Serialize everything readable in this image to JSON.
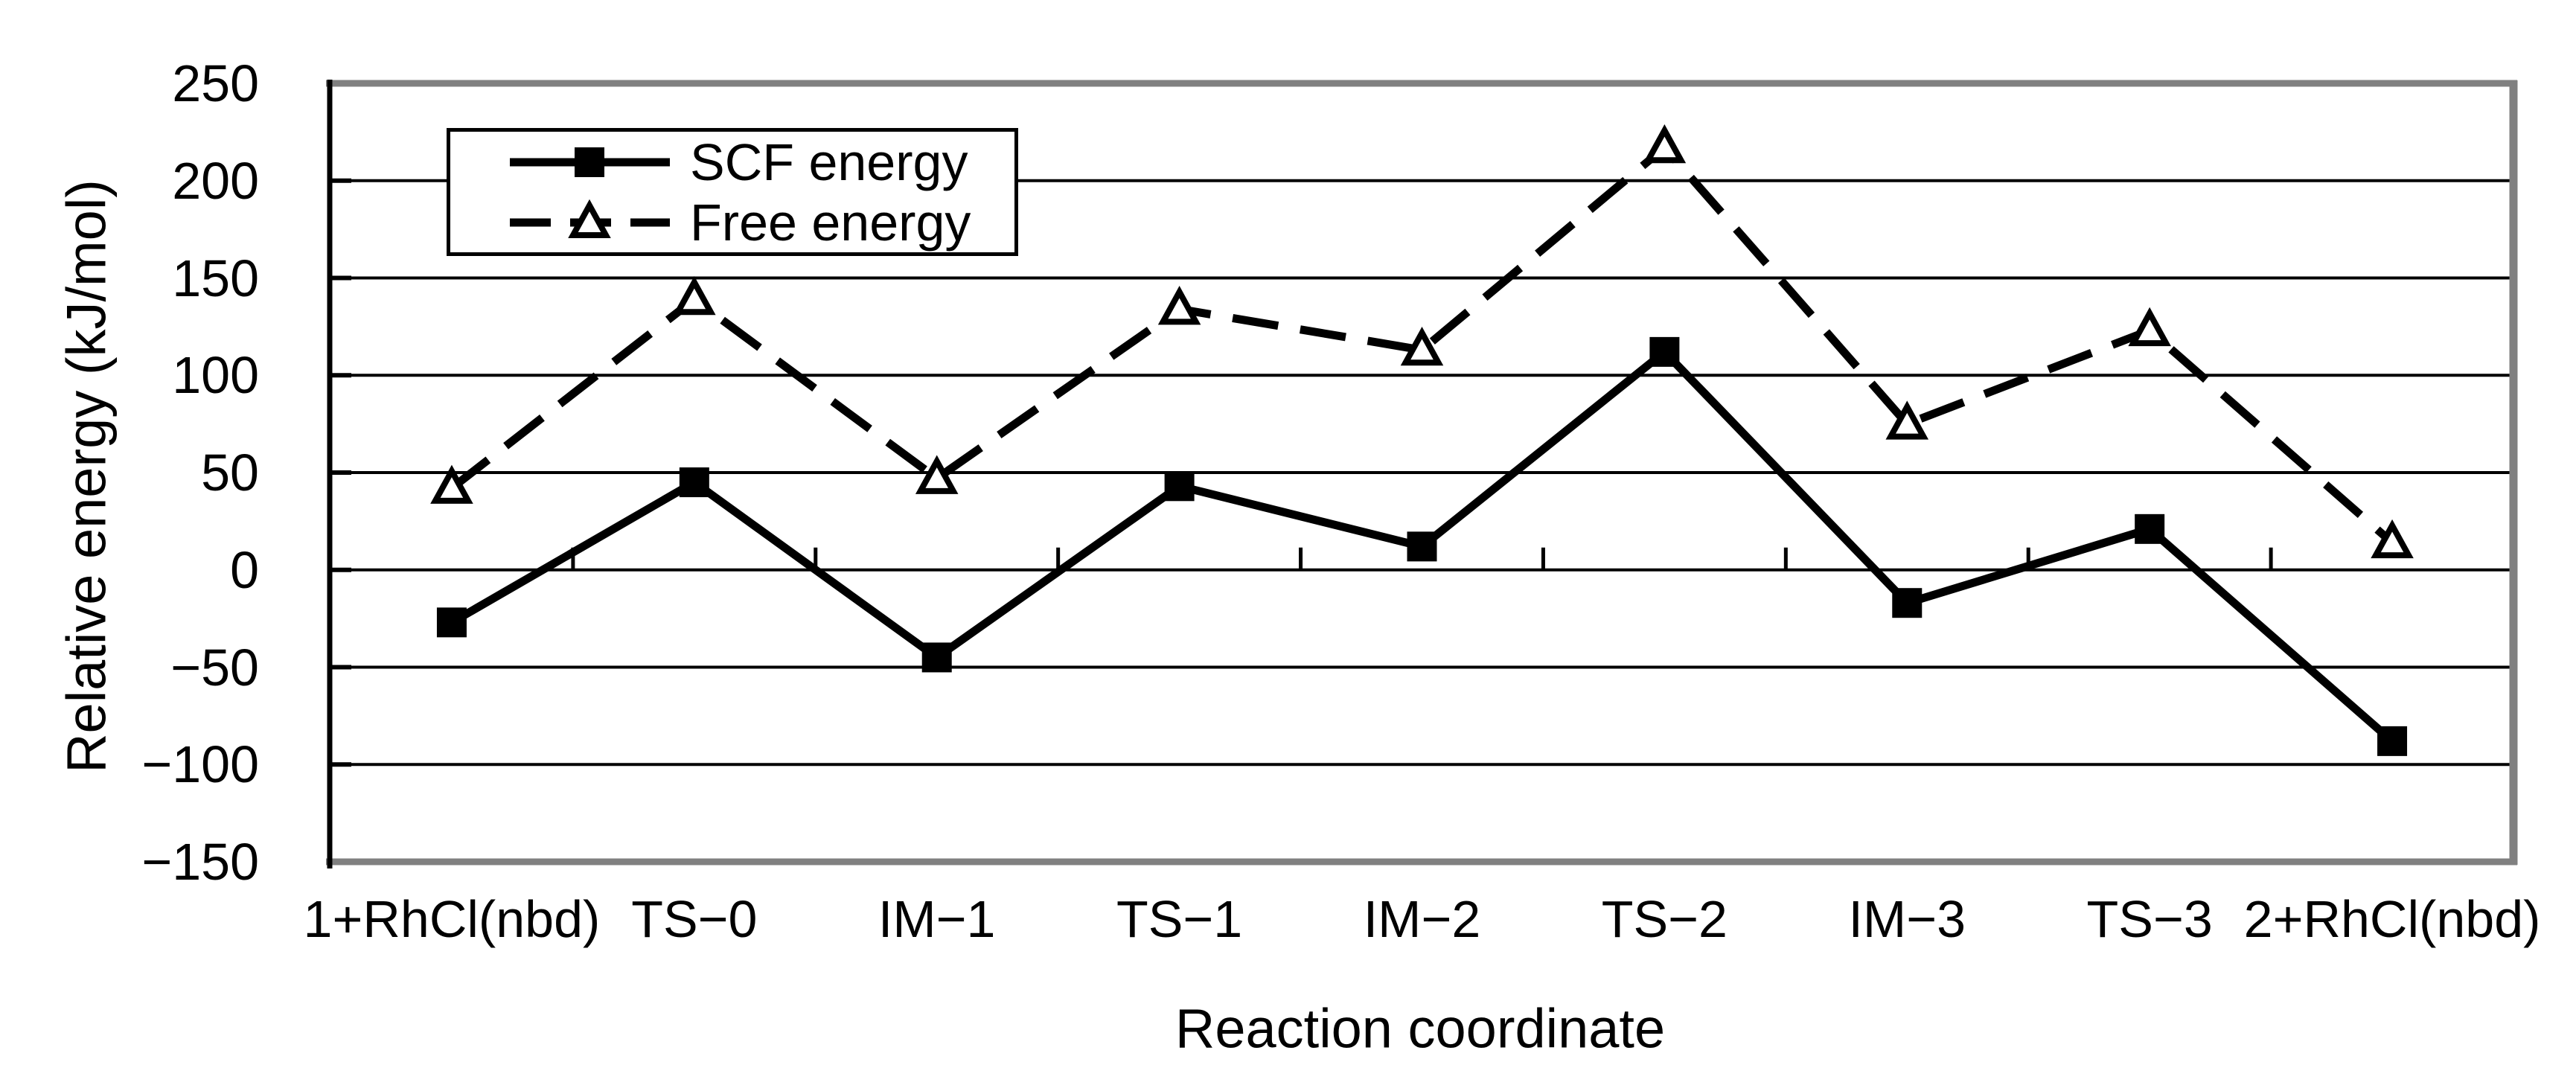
{
  "chart_data": {
    "type": "line",
    "title": "",
    "xlabel": "Reaction coordinate",
    "ylabel": "Relative energy (kJ/mol)",
    "categories": [
      "1+RhCl(nbd)",
      "TS−0",
      "IM−1",
      "TS−1",
      "IM−2",
      "TS−2",
      "IM−3",
      "TS−3",
      "2+RhCl(nbd)"
    ],
    "series": [
      {
        "name": "SCF energy",
        "marker": "filled-square",
        "line_style": "solid",
        "color": "#000000",
        "values": [
          -27,
          45,
          -45,
          43,
          12,
          112,
          -17,
          21,
          -88
        ]
      },
      {
        "name": "Free energy",
        "marker": "open-triangle",
        "line_style": "dashed",
        "color": "#000000",
        "values": [
          42,
          139,
          47,
          134,
          113,
          217,
          75,
          123,
          14
        ]
      }
    ],
    "ylim": [
      -150,
      250
    ],
    "ytick_step": 50,
    "ytick_labels": [
      "250",
      "200",
      "150",
      "100",
      "50",
      "0",
      "−50",
      "−100",
      "−150"
    ],
    "grid": "horizontal",
    "legend_position": "top-left-inside",
    "axis_color": "#000000",
    "plot_border_color": "#808080",
    "background": "#ffffff"
  }
}
